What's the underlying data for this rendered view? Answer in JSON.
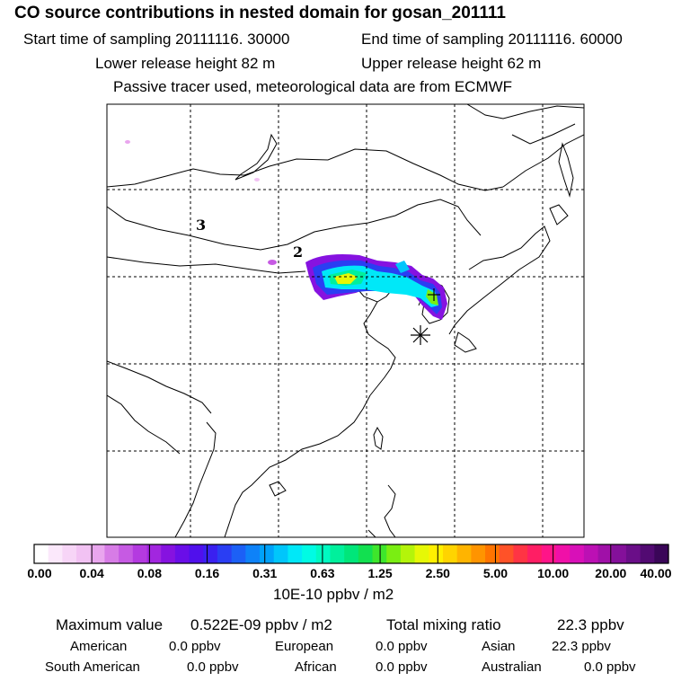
{
  "header": {
    "title": "CO  source contributions in nested domain for gosan_201111",
    "start_time": "Start time of sampling 20111116. 30000",
    "end_time": "End time of sampling 20111116. 60000",
    "lower_release": "Lower release height   82 m",
    "upper_release": "Upper release height   62 m",
    "tracer_note": "Passive tracer used, meteorological data are from ECMWF"
  },
  "map": {
    "trajectory_labels": [
      "3",
      "2"
    ],
    "receptor": "gosan"
  },
  "colorbar": {
    "ticks": [
      "0.00",
      "0.04",
      "0.08",
      "0.16",
      "0.31",
      "0.63",
      "1.25",
      "2.50",
      "5.00",
      "10.00",
      "20.00",
      "40.00"
    ],
    "unit": "10E-10 ppbv / m2",
    "colors": [
      "#ffffff",
      "#fbe8fb",
      "#f7d5f7",
      "#f2c2f3",
      "#e9a6ee",
      "#d77ce6",
      "#c65ae3",
      "#b43ae0",
      "#a226df",
      "#8612e0",
      "#6a0ee8",
      "#5010ec",
      "#3a20f0",
      "#2a3ef3",
      "#1c60f6",
      "#0e82f8",
      "#00a2fa",
      "#00c6fb",
      "#00e8f8",
      "#00fbe4",
      "#00fac2",
      "#00f09c",
      "#00e67a",
      "#12e050",
      "#3ee62c",
      "#7aee12",
      "#b4f40a",
      "#e6f806",
      "#fff000",
      "#ffd400",
      "#ffb400",
      "#ff9400",
      "#ff7400",
      "#ff5228",
      "#ff3444",
      "#ff1e64",
      "#ff1488",
      "#f010a8",
      "#d810b8",
      "#bc10b4",
      "#a010a8",
      "#84109a",
      "#6a0e88",
      "#520a72",
      "#3a0658"
    ]
  },
  "stats": {
    "max_label": "Maximum value",
    "max_value": "0.522E-09 ppbv / m2",
    "total_label": "Total mixing ratio",
    "total_value": "22.3 ppbv",
    "regions": [
      {
        "name": "American",
        "value": "0.0 ppbv"
      },
      {
        "name": "European",
        "value": "0.0 ppbv"
      },
      {
        "name": "Asian",
        "value": "22.3 ppbv"
      },
      {
        "name": "South American",
        "value": "0.0 ppbv"
      },
      {
        "name": "African",
        "value": "0.0 ppbv"
      },
      {
        "name": "Australian",
        "value": "0.0 ppbv"
      }
    ]
  }
}
